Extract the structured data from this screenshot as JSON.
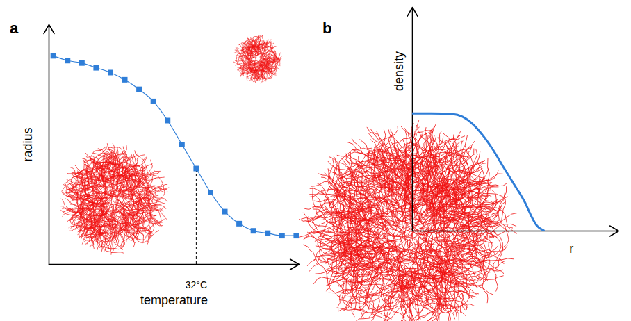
{
  "chart_data": [
    {
      "type": "line",
      "panel_label": "a",
      "x_label": "temperature",
      "y_label": "radius",
      "x": [
        22,
        23,
        24,
        25,
        26,
        27,
        28,
        29,
        30,
        31,
        32,
        33,
        34,
        35,
        36,
        37,
        38,
        39
      ],
      "values": [
        87,
        85,
        84,
        82,
        80,
        77,
        73,
        68,
        60,
        50,
        40,
        30,
        22,
        17,
        14,
        13,
        12,
        12
      ],
      "color": "#2f7ed8",
      "marker": "square",
      "line_style": "solid",
      "xlim": [
        21.7,
        39.2
      ],
      "ylim": [
        0,
        100
      ],
      "xticks": [
        {
          "value": 32,
          "label": "32°C"
        }
      ],
      "yticks": [],
      "tick_labels": "x"
    },
    {
      "type": "line",
      "panel_label": "b",
      "x_label": "r",
      "y_label": "density",
      "x": [
        0,
        9.1,
        19.2,
        24.2,
        29.3,
        34.3,
        39.4,
        44.4,
        49.5,
        54.5,
        57.9,
        60.3,
        63.6
      ],
      "values": [
        52.6,
        52.6,
        52.3,
        51.1,
        47.7,
        42.5,
        35.8,
        28.1,
        20.5,
        12.8,
        6.1,
        2.4,
        0.3
      ],
      "color": "#2f7ed8",
      "marker": "none",
      "line_style": "solid",
      "xlim": [
        0,
        100
      ],
      "ylim": [
        0,
        100
      ],
      "xticks": [],
      "yticks": [],
      "tick_labels": false
    }
  ]
}
